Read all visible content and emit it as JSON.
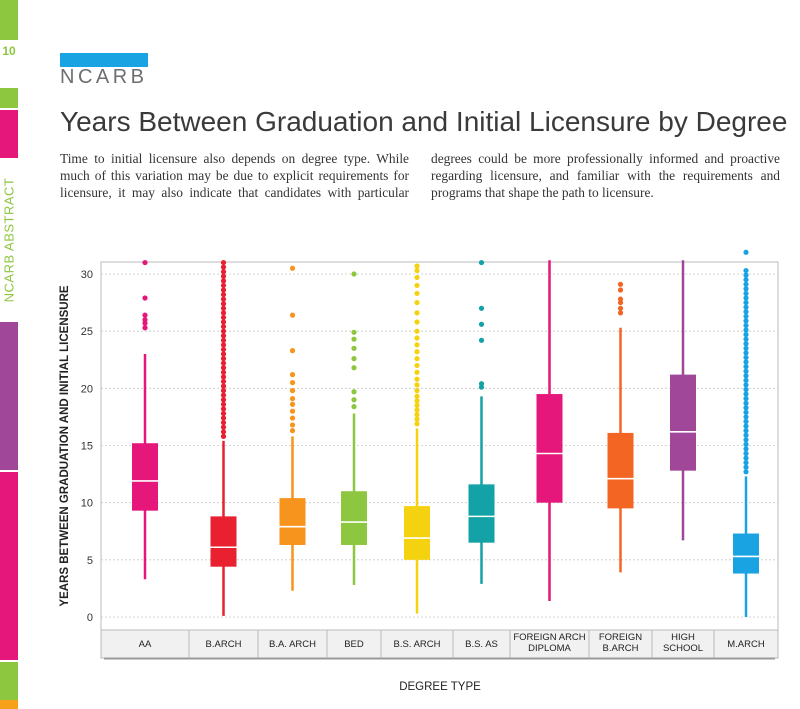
{
  "sidebar": {
    "page_number": "10",
    "label": "NCARB ABSTRACT",
    "colors": [
      "#8dc63f",
      "#e6177a",
      "#8dc63f",
      "#e6177a",
      "#a0479a",
      "#e6177a",
      "#8dc63f",
      "#f7a11a"
    ]
  },
  "logo": {
    "text": "NCARB",
    "bar_color": "#1aa3e2"
  },
  "page_title": "Years Between Graduation and Initial Licensure by Degree",
  "intro": "Time to initial licensure also depends on degree type. While much of this variation may be due to explicit requirements for licensure, it may also indicate that candidates with particular degrees could be more professionally informed and proactive regarding licensure, and familiar with the requirements and programs that shape the path to licensure.",
  "chart_data": {
    "type": "boxplot",
    "title": "",
    "xlabel": "DEGREE TYPE",
    "ylabel": "YEARS BETWEEN GRADUATION AND INITIAL LICENSURE",
    "ylim": [
      0,
      31
    ],
    "yticks": [
      0,
      5,
      10,
      15,
      20,
      25,
      30
    ],
    "grid": true,
    "categories": [
      {
        "label": [
          "AA"
        ],
        "color": "#e6177a",
        "whisker_low": 3.3,
        "q1": 9.3,
        "median": 11.9,
        "q3": 15.2,
        "whisker_high": 23.0,
        "outliers": [
          26.0,
          26.4,
          25.3,
          25.7,
          27.9,
          31.0
        ]
      },
      {
        "label": [
          "B.ARCH"
        ],
        "color": "#e8202f",
        "whisker_low": 0.1,
        "q1": 4.4,
        "median": 6.1,
        "q3": 8.8,
        "whisker_high": 15.4,
        "outliers": [
          15.8,
          16.2,
          16.6,
          17.0,
          17.4,
          17.8,
          18.2,
          18.6,
          19.0,
          19.4,
          19.8,
          20.2,
          20.6,
          21.0,
          21.4,
          21.8,
          22.2,
          22.6,
          23.0,
          23.4,
          23.8,
          24.2,
          24.6,
          25.0,
          25.4,
          25.8,
          26.2,
          26.6,
          27.0,
          27.4,
          27.8,
          28.2,
          28.6,
          29.0,
          29.4,
          29.8,
          30.2,
          30.6,
          31.0
        ]
      },
      {
        "label": [
          "B.A. ARCH"
        ],
        "color": "#f7941d",
        "whisker_low": 2.3,
        "q1": 6.3,
        "median": 7.9,
        "q3": 10.4,
        "whisker_high": 15.8,
        "outliers": [
          16.3,
          16.8,
          17.4,
          18.0,
          18.6,
          19.1,
          19.8,
          20.5,
          21.2,
          23.3,
          26.4,
          30.5
        ]
      },
      {
        "label": [
          "BED"
        ],
        "color": "#8dc63f",
        "whisker_low": 2.8,
        "q1": 6.3,
        "median": 8.3,
        "q3": 11.0,
        "whisker_high": 17.8,
        "outliers": [
          18.4,
          19.0,
          19.7,
          21.8,
          22.6,
          23.5,
          24.3,
          24.9,
          30.0
        ]
      },
      {
        "label": [
          "B.S. ARCH"
        ],
        "color": "#f5d20f",
        "whisker_low": 0.3,
        "q1": 5.0,
        "median": 6.9,
        "q3": 9.7,
        "whisker_high": 16.5,
        "outliers": [
          16.9,
          17.3,
          17.7,
          18.1,
          18.5,
          18.9,
          19.3,
          19.8,
          20.3,
          20.8,
          21.4,
          22.0,
          22.6,
          23.2,
          23.8,
          24.4,
          25.0,
          25.8,
          26.6,
          27.5,
          28.3,
          29.0,
          29.7,
          30.3,
          30.7
        ]
      },
      {
        "label": [
          "B.S. AS"
        ],
        "color": "#13a2a6",
        "whisker_low": 2.9,
        "q1": 6.5,
        "median": 8.8,
        "q3": 11.6,
        "whisker_high": 19.3,
        "outliers": [
          20.1,
          20.4,
          24.2,
          25.6,
          27.0,
          31.0
        ]
      },
      {
        "label": [
          "FOREIGN ARCH",
          "DIPLOMA"
        ],
        "color": "#e6177a",
        "whisker_low": 1.4,
        "q1": 10.0,
        "median": 14.3,
        "q3": 19.5,
        "whisker_high": 31.2,
        "outliers": []
      },
      {
        "label": [
          "FOREIGN",
          "B.ARCH"
        ],
        "color": "#f26522",
        "whisker_low": 3.9,
        "q1": 9.5,
        "median": 12.1,
        "q3": 16.1,
        "whisker_high": 25.3,
        "outliers": [
          26.6,
          27.0,
          27.5,
          27.8,
          28.6,
          29.1
        ]
      },
      {
        "label": [
          "HIGH",
          "SCHOOL"
        ],
        "color": "#a0479a",
        "whisker_low": 6.7,
        "q1": 12.8,
        "median": 16.2,
        "q3": 21.2,
        "whisker_high": 31.2,
        "outliers": []
      },
      {
        "label": [
          "M.ARCH"
        ],
        "color": "#1aa3e2",
        "whisker_low": 0.0,
        "q1": 3.8,
        "median": 5.3,
        "q3": 7.3,
        "whisker_high": 12.3,
        "outliers": [
          12.7,
          13.1,
          13.5,
          13.9,
          14.3,
          14.7,
          15.1,
          15.5,
          15.9,
          16.3,
          16.7,
          17.1,
          17.5,
          17.9,
          18.3,
          18.7,
          19.1,
          19.5,
          19.9,
          20.3,
          20.7,
          21.1,
          21.5,
          21.9,
          22.3,
          22.7,
          23.1,
          23.5,
          23.9,
          24.3,
          24.7,
          25.1,
          25.5,
          25.9,
          26.3,
          26.7,
          27.1,
          27.5,
          27.9,
          28.3,
          28.7,
          29.1,
          29.5,
          29.9,
          30.3,
          31.9
        ]
      }
    ]
  }
}
